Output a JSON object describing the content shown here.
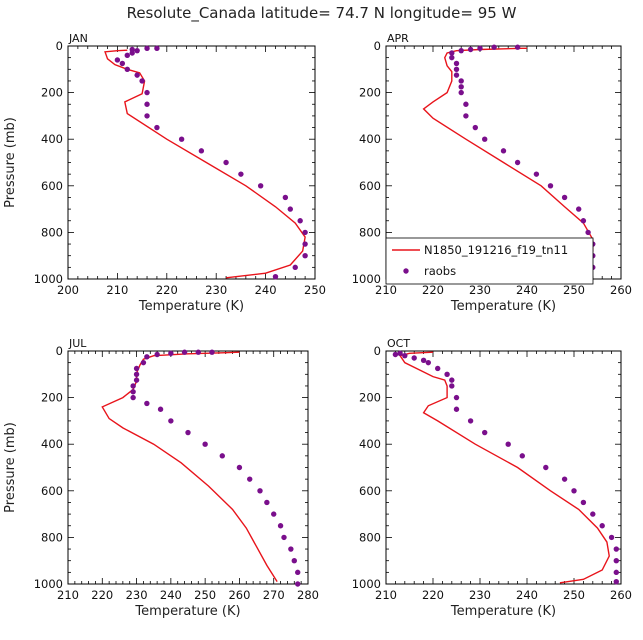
{
  "figure": {
    "title": "Resolute_Canada  latitude= 74.7 N longitude= 95 W"
  },
  "legend": {
    "model_label": "N1850_191216_f19_tn11",
    "obs_label": "raobs",
    "model_color": "#e8141b",
    "obs_color": "#7a0f8c"
  },
  "chart_data": [
    {
      "type": "line",
      "panel": "JAN",
      "title": "JAN",
      "xlabel": "Temperature (K)",
      "ylabel": "Pressure (mb)",
      "xlim": [
        200,
        250
      ],
      "ylim": [
        1000,
        0
      ],
      "xticks": [
        200,
        210,
        220,
        230,
        240,
        250
      ],
      "yticks": [
        0,
        200,
        400,
        600,
        800,
        1000
      ],
      "series": [
        {
          "name": "N1850_191216_f19_tn11",
          "style": "line",
          "points": [
            [
              232,
              995
            ],
            [
              240,
              975
            ],
            [
              245,
              940
            ],
            [
              247.5,
              880
            ],
            [
              248,
              820
            ],
            [
              246,
              760
            ],
            [
              242,
              690
            ],
            [
              236,
              600
            ],
            [
              228,
              500
            ],
            [
              220,
              400
            ],
            [
              212,
              290
            ],
            [
              211.5,
              240
            ],
            [
              215,
              205
            ],
            [
              215.5,
              150
            ],
            [
              214.5,
              115
            ],
            [
              212,
              100
            ],
            [
              209.5,
              80
            ],
            [
              208,
              55
            ],
            [
              207.5,
              25
            ],
            [
              210,
              20
            ],
            [
              212,
              18
            ]
          ]
        },
        {
          "name": "raobs",
          "style": "scatter",
          "points": [
            [
              242,
              990
            ],
            [
              246,
              950
            ],
            [
              248,
              900
            ],
            [
              248,
              850
            ],
            [
              248,
              800
            ],
            [
              247,
              750
            ],
            [
              245,
              700
            ],
            [
              244,
              650
            ],
            [
              239,
              600
            ],
            [
              235,
              550
            ],
            [
              232,
              500
            ],
            [
              227,
              450
            ],
            [
              223,
              400
            ],
            [
              218,
              350
            ],
            [
              216,
              300
            ],
            [
              216,
              250
            ],
            [
              216,
              200
            ],
            [
              215,
              150
            ],
            [
              214,
              125
            ],
            [
              212,
              100
            ],
            [
              211,
              75
            ],
            [
              210,
              60
            ],
            [
              212,
              40
            ],
            [
              213,
              30
            ],
            [
              214,
              20
            ],
            [
              216,
              10
            ],
            [
              213,
              15
            ],
            [
              218,
              10
            ]
          ]
        }
      ]
    },
    {
      "type": "line",
      "panel": "APR",
      "title": "APR",
      "xlabel": "Temperature (K)",
      "ylabel": "Pressure (mb)",
      "xlim": [
        210,
        260
      ],
      "ylim": [
        1000,
        0
      ],
      "xticks": [
        210,
        220,
        230,
        240,
        250,
        260
      ],
      "yticks": [
        0,
        200,
        400,
        600,
        800,
        1000
      ],
      "series": [
        {
          "name": "N1850_191216_f19_tn11",
          "style": "line",
          "points": [
            [
              243.5,
              995
            ],
            [
              250,
              975
            ],
            [
              253,
              940
            ],
            [
              254,
              880
            ],
            [
              254,
              830
            ],
            [
              252,
              760
            ],
            [
              248,
              690
            ],
            [
              243,
              600
            ],
            [
              235,
              500
            ],
            [
              227,
              400
            ],
            [
              220,
              310
            ],
            [
              218,
              270
            ],
            [
              220,
              240
            ],
            [
              223,
              200
            ],
            [
              224,
              150
            ],
            [
              224,
              110
            ],
            [
              223,
              85
            ],
            [
              222.5,
              50
            ],
            [
              223,
              30
            ],
            [
              225,
              20
            ],
            [
              230,
              15
            ],
            [
              239,
              10
            ],
            [
              240,
              10
            ]
          ]
        },
        {
          "name": "raobs",
          "style": "scatter",
          "points": [
            [
              252,
              995
            ],
            [
              254,
              950
            ],
            [
              254,
              900
            ],
            [
              254,
              850
            ],
            [
              253,
              800
            ],
            [
              252,
              750
            ],
            [
              251,
              700
            ],
            [
              248,
              650
            ],
            [
              245,
              600
            ],
            [
              242,
              550
            ],
            [
              238,
              500
            ],
            [
              235,
              450
            ],
            [
              231,
              400
            ],
            [
              229,
              350
            ],
            [
              227,
              300
            ],
            [
              227,
              250
            ],
            [
              226,
              200
            ],
            [
              226,
              175
            ],
            [
              226,
              150
            ],
            [
              225,
              125
            ],
            [
              225,
              100
            ],
            [
              225,
              75
            ],
            [
              224,
              50
            ],
            [
              224,
              30
            ],
            [
              226,
              20
            ],
            [
              228,
              15
            ],
            [
              230,
              10
            ],
            [
              233,
              5
            ],
            [
              238,
              5
            ]
          ]
        }
      ]
    },
    {
      "type": "line",
      "panel": "JUL",
      "title": "JUL",
      "xlabel": "Temperature (K)",
      "ylabel": "Pressure (mb)",
      "xlim": [
        210,
        280
      ],
      "ylim": [
        1000,
        0
      ],
      "xticks": [
        210,
        220,
        230,
        240,
        250,
        260,
        270,
        280
      ],
      "yticks": [
        0,
        200,
        400,
        600,
        800,
        1000
      ],
      "series": [
        {
          "name": "N1850_191216_f19_tn11",
          "style": "line",
          "points": [
            [
              271,
              990
            ],
            [
              268,
              920
            ],
            [
              265,
              840
            ],
            [
              262,
              760
            ],
            [
              258,
              680
            ],
            [
              251,
              580
            ],
            [
              243,
              480
            ],
            [
              235,
              400
            ],
            [
              226,
              330
            ],
            [
              222,
              290
            ],
            [
              220,
              240
            ],
            [
              226,
              200
            ],
            [
              229,
              165
            ],
            [
              230,
              130
            ],
            [
              230,
              95
            ],
            [
              231,
              60
            ],
            [
              232,
              35
            ],
            [
              235,
              20
            ],
            [
              245,
              12
            ],
            [
              255,
              8
            ],
            [
              260,
              5
            ]
          ]
        },
        {
          "name": "raobs",
          "style": "scatter",
          "points": [
            [
              277,
              1000
            ],
            [
              277,
              950
            ],
            [
              276,
              900
            ],
            [
              275,
              850
            ],
            [
              273,
              800
            ],
            [
              272,
              750
            ],
            [
              270,
              700
            ],
            [
              268,
              650
            ],
            [
              266,
              600
            ],
            [
              263,
              550
            ],
            [
              260,
              500
            ],
            [
              255,
              450
            ],
            [
              250,
              400
            ],
            [
              245,
              350
            ],
            [
              240,
              300
            ],
            [
              237,
              250
            ],
            [
              233,
              225
            ],
            [
              229,
              200
            ],
            [
              229,
              175
            ],
            [
              229,
              150
            ],
            [
              230,
              125
            ],
            [
              230,
              100
            ],
            [
              230,
              75
            ],
            [
              232,
              50
            ],
            [
              233,
              25
            ],
            [
              236,
              15
            ],
            [
              240,
              10
            ],
            [
              244,
              5
            ],
            [
              248,
              5
            ],
            [
              252,
              5
            ]
          ]
        }
      ]
    },
    {
      "type": "line",
      "panel": "OCT",
      "title": "OCT",
      "xlabel": "Temperature (K)",
      "ylabel": "Pressure (mb)",
      "xlim": [
        210,
        260
      ],
      "ylim": [
        1000,
        0
      ],
      "xticks": [
        210,
        220,
        230,
        240,
        250,
        260
      ],
      "yticks": [
        0,
        200,
        400,
        600,
        800,
        1000
      ],
      "series": [
        {
          "name": "N1850_191216_f19_tn11",
          "style": "line",
          "points": [
            [
              247,
              995
            ],
            [
              252,
              980
            ],
            [
              256,
              940
            ],
            [
              257.5,
              880
            ],
            [
              257,
              820
            ],
            [
              255,
              760
            ],
            [
              251,
              680
            ],
            [
              245,
              600
            ],
            [
              238,
              500
            ],
            [
              229,
              400
            ],
            [
              221,
              300
            ],
            [
              218,
              265
            ],
            [
              219,
              235
            ],
            [
              223,
              200
            ],
            [
              223,
              150
            ],
            [
              222.5,
              125
            ],
            [
              220,
              110
            ],
            [
              217,
              80
            ],
            [
              214,
              50
            ],
            [
              213,
              20
            ],
            [
              215,
              10
            ],
            [
              220,
              5
            ]
          ]
        },
        {
          "name": "raobs",
          "style": "scatter",
          "points": [
            [
              259,
              990
            ],
            [
              259,
              950
            ],
            [
              259,
              900
            ],
            [
              259,
              850
            ],
            [
              258,
              800
            ],
            [
              256,
              750
            ],
            [
              254,
              700
            ],
            [
              252,
              650
            ],
            [
              250,
              600
            ],
            [
              248,
              550
            ],
            [
              244,
              500
            ],
            [
              239,
              450
            ],
            [
              236,
              400
            ],
            [
              231,
              350
            ],
            [
              228,
              300
            ],
            [
              225,
              250
            ],
            [
              225,
              200
            ],
            [
              224,
              150
            ],
            [
              224,
              125
            ],
            [
              223,
              100
            ],
            [
              221,
              75
            ],
            [
              219,
              50
            ],
            [
              218,
              40
            ],
            [
              216,
              30
            ],
            [
              214,
              20
            ],
            [
              212,
              15
            ],
            [
              213,
              10
            ]
          ]
        }
      ]
    }
  ]
}
